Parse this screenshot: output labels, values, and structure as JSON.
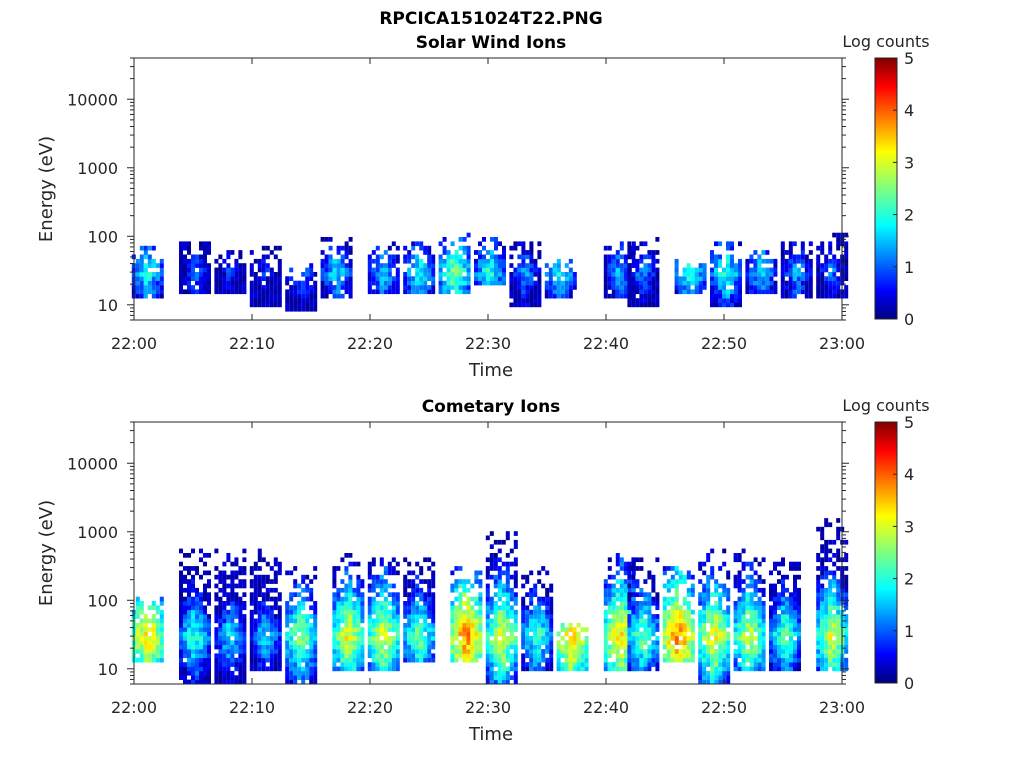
{
  "figure": {
    "filename": "RPCICA151024T22.PNG"
  },
  "chart_data": [
    {
      "type": "heatmap",
      "title": "Solar Wind Ions",
      "xlabel": "Time",
      "ylabel": "Energy (eV)",
      "x_ticks": [
        "22:00",
        "22:10",
        "22:20",
        "22:30",
        "22:40",
        "22:50",
        "23:00"
      ],
      "xlim": [
        "22:00",
        "23:00"
      ],
      "y_scale": "log",
      "y_ticks": [
        10,
        100,
        1000,
        10000
      ],
      "y_tick_labels": [
        "10",
        "100",
        "1000",
        "10000"
      ],
      "ylim": [
        6,
        40000
      ],
      "colorbar": {
        "label": "Log counts",
        "range": [
          0,
          5
        ],
        "ticks": [
          "0",
          "1",
          "2",
          "3",
          "4",
          "5"
        ],
        "colormap": "jet"
      },
      "bursts": [
        {
          "t": "22:01",
          "e_min": 12,
          "e_max": 75,
          "peak": 2.1
        },
        {
          "t": "22:05",
          "e_min": 15,
          "e_max": 100,
          "peak": 1.3
        },
        {
          "t": "22:08",
          "e_min": 15,
          "e_max": 60,
          "peak": 1.0
        },
        {
          "t": "22:11",
          "e_min": 10,
          "e_max": 70,
          "peak": 0.9
        },
        {
          "t": "22:14",
          "e_min": 8,
          "e_max": 40,
          "peak": 1.6
        },
        {
          "t": "22:17",
          "e_min": 12,
          "e_max": 100,
          "peak": 1.9
        },
        {
          "t": "22:21",
          "e_min": 15,
          "e_max": 80,
          "peak": 1.8
        },
        {
          "t": "22:24",
          "e_min": 15,
          "e_max": 80,
          "peak": 2.1
        },
        {
          "t": "22:27",
          "e_min": 15,
          "e_max": 110,
          "peak": 2.6
        },
        {
          "t": "22:30",
          "e_min": 20,
          "e_max": 100,
          "peak": 2.2
        },
        {
          "t": "22:33",
          "e_min": 10,
          "e_max": 90,
          "peak": 1.5
        },
        {
          "t": "22:36",
          "e_min": 12,
          "e_max": 45,
          "peak": 2.1
        },
        {
          "t": "22:41",
          "e_min": 12,
          "e_max": 90,
          "peak": 1.6
        },
        {
          "t": "22:43",
          "e_min": 10,
          "e_max": 100,
          "peak": 1.5
        },
        {
          "t": "22:47",
          "e_min": 15,
          "e_max": 45,
          "peak": 2.2
        },
        {
          "t": "22:50",
          "e_min": 10,
          "e_max": 80,
          "peak": 2.2
        },
        {
          "t": "22:53",
          "e_min": 15,
          "e_max": 60,
          "peak": 1.9
        },
        {
          "t": "22:56",
          "e_min": 12,
          "e_max": 90,
          "peak": 1.6
        },
        {
          "t": "22:59",
          "e_min": 12,
          "e_max": 110,
          "peak": 1.3
        }
      ]
    },
    {
      "type": "heatmap",
      "title": "Cometary Ions",
      "xlabel": "Time",
      "ylabel": "Energy (eV)",
      "x_ticks": [
        "22:00",
        "22:10",
        "22:20",
        "22:30",
        "22:40",
        "22:50",
        "23:00"
      ],
      "xlim": [
        "22:00",
        "23:00"
      ],
      "y_scale": "log",
      "y_ticks": [
        10,
        100,
        1000,
        10000
      ],
      "y_tick_labels": [
        "10",
        "100",
        "1000",
        "10000"
      ],
      "ylim": [
        6,
        40000
      ],
      "colorbar": {
        "label": "Log counts",
        "range": [
          0,
          5
        ],
        "ticks": [
          "0",
          "1",
          "2",
          "3",
          "4",
          "5"
        ],
        "colormap": "jet"
      },
      "bursts": [
        {
          "t": "22:01",
          "e_min": 12,
          "e_max": 120,
          "peak": 3.5
        },
        {
          "t": "22:05",
          "e_min": 6,
          "e_max": 600,
          "peak": 2.3
        },
        {
          "t": "22:08",
          "e_min": 6,
          "e_max": 550,
          "peak": 2.0
        },
        {
          "t": "22:11",
          "e_min": 10,
          "e_max": 600,
          "peak": 1.9
        },
        {
          "t": "22:14",
          "e_min": 6,
          "e_max": 300,
          "peak": 2.8
        },
        {
          "t": "22:18",
          "e_min": 10,
          "e_max": 500,
          "peak": 3.2
        },
        {
          "t": "22:21",
          "e_min": 10,
          "e_max": 400,
          "peak": 3.2
        },
        {
          "t": "22:24",
          "e_min": 12,
          "e_max": 400,
          "peak": 2.6
        },
        {
          "t": "22:28",
          "e_min": 12,
          "e_max": 300,
          "peak": 3.9
        },
        {
          "t": "22:31",
          "e_min": 6,
          "e_max": 1000,
          "peak": 3.2
        },
        {
          "t": "22:34",
          "e_min": 10,
          "e_max": 300,
          "peak": 2.4
        },
        {
          "t": "22:37",
          "e_min": 10,
          "e_max": 50,
          "peak": 3.6
        },
        {
          "t": "22:41",
          "e_min": 10,
          "e_max": 500,
          "peak": 3.5
        },
        {
          "t": "22:43",
          "e_min": 10,
          "e_max": 400,
          "peak": 2.6
        },
        {
          "t": "22:46",
          "e_min": 12,
          "e_max": 300,
          "peak": 3.9
        },
        {
          "t": "22:49",
          "e_min": 6,
          "e_max": 550,
          "peak": 3.3
        },
        {
          "t": "22:52",
          "e_min": 10,
          "e_max": 550,
          "peak": 3.1
        },
        {
          "t": "22:55",
          "e_min": 10,
          "e_max": 400,
          "peak": 2.5
        },
        {
          "t": "22:59",
          "e_min": 10,
          "e_max": 1500,
          "peak": 3.1
        }
      ]
    }
  ]
}
